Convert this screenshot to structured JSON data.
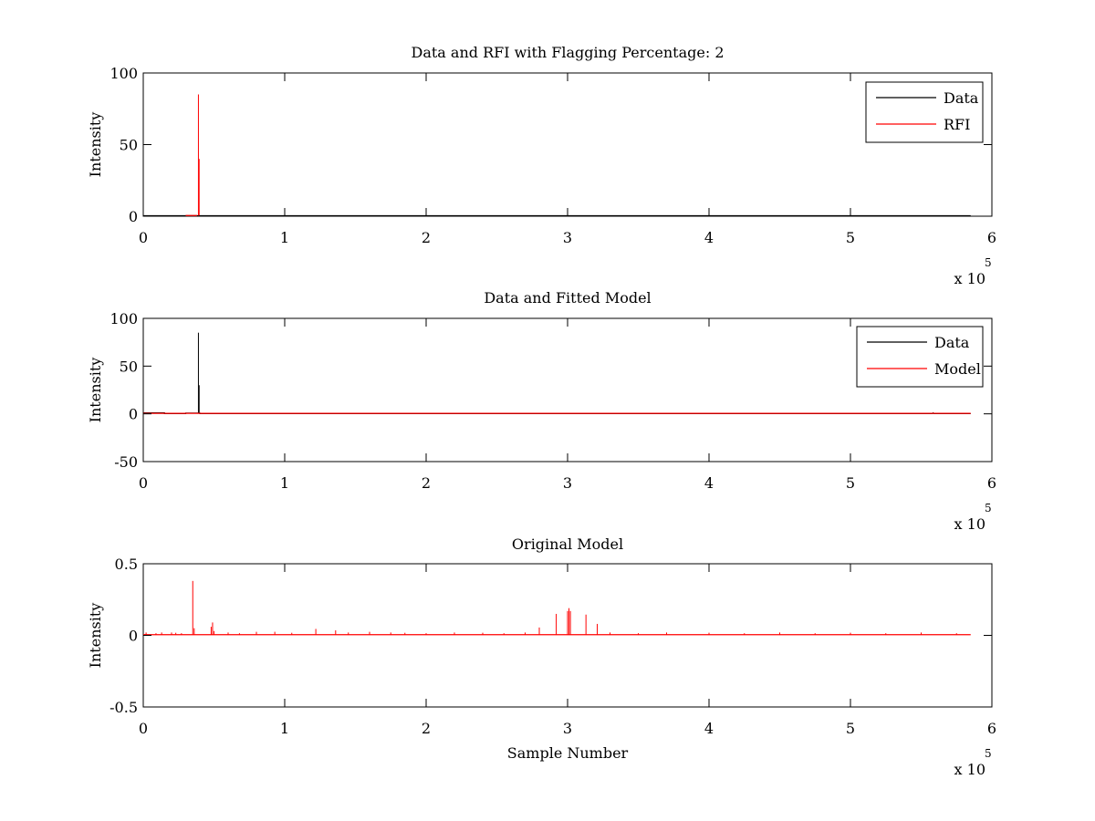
{
  "chart_data": [
    {
      "type": "line",
      "title": "Data and RFI with Flagging Percentage: 2",
      "xlabel": "",
      "ylabel": "Intensity",
      "xlim": [
        0,
        600000
      ],
      "ylim": [
        0,
        100
      ],
      "xticks": [
        0,
        1,
        2,
        3,
        4,
        5,
        6
      ],
      "yticks": [
        0,
        50,
        100
      ],
      "x_multiplier_base": "x 10",
      "x_multiplier_exp": "5",
      "grid": false,
      "legend_position": "top-right",
      "legend": [
        "Data",
        "RFI"
      ],
      "series": [
        {
          "name": "Data",
          "color": "#000000",
          "points": [
            [
              0,
              0.3
            ],
            [
              585000,
              0.3
            ]
          ],
          "spikes": []
        },
        {
          "name": "RFI",
          "color": "#ff0000",
          "points": [
            [
              30000,
              0.5
            ],
            [
              38000,
              0.5
            ]
          ],
          "spikes": [
            [
              39000,
              85
            ],
            [
              39500,
              40
            ]
          ]
        }
      ]
    },
    {
      "type": "line",
      "title": "Data and Fitted Model",
      "xlabel": "",
      "ylabel": "Intensity",
      "xlim": [
        0,
        600000
      ],
      "ylim": [
        -50,
        100
      ],
      "xticks": [
        0,
        1,
        2,
        3,
        4,
        5,
        6
      ],
      "yticks": [
        -50,
        0,
        50,
        100
      ],
      "x_multiplier_base": "x 10",
      "x_multiplier_exp": "5",
      "grid": false,
      "legend_position": "top-right",
      "legend": [
        "Data",
        "Model"
      ],
      "series": [
        {
          "name": "Data",
          "color": "#000000",
          "points": [
            [
              0,
              1
            ],
            [
              15000,
              1
            ],
            [
              15000,
              0.3
            ],
            [
              30000,
              0.3
            ],
            [
              30000,
              0.8
            ],
            [
              40000,
              0.8
            ],
            [
              40000,
              0.2
            ],
            [
              558000,
              0.2
            ],
            [
              558500,
              1
            ],
            [
              559000,
              0.2
            ],
            [
              585000,
              0.2
            ]
          ],
          "spikes": [
            [
              39000,
              85
            ],
            [
              39500,
              30
            ]
          ]
        },
        {
          "name": "Model",
          "color": "#ff0000",
          "points": [
            [
              0,
              0.5
            ],
            [
              585000,
              0.5
            ]
          ],
          "spikes": []
        }
      ]
    },
    {
      "type": "line",
      "title": "Original Model",
      "xlabel": "Sample Number",
      "ylabel": "Intensity",
      "xlim": [
        0,
        600000
      ],
      "ylim": [
        -0.5,
        0.5
      ],
      "xticks": [
        0,
        1,
        2,
        3,
        4,
        5,
        6
      ],
      "yticks": [
        -0.5,
        0,
        0.5
      ],
      "x_multiplier_base": "x 10",
      "x_multiplier_exp": "5",
      "grid": false,
      "legend_position": "none",
      "legend": [],
      "series": [
        {
          "name": "",
          "color": "#ff0000",
          "points": [
            [
              0,
              0.005
            ],
            [
              585000,
              0.005
            ]
          ],
          "spikes": [
            [
              2000,
              0.02
            ],
            [
              9000,
              0.015
            ],
            [
              13000,
              0.02
            ],
            [
              20000,
              0.02
            ],
            [
              23000,
              0.018
            ],
            [
              27000,
              0.015
            ],
            [
              35000,
              0.38
            ],
            [
              36000,
              0.05
            ],
            [
              48000,
              0.06
            ],
            [
              49000,
              0.09
            ],
            [
              50000,
              0.03
            ],
            [
              60000,
              0.02
            ],
            [
              68000,
              0.015
            ],
            [
              80000,
              0.025
            ],
            [
              93000,
              0.025
            ],
            [
              105000,
              0.018
            ],
            [
              122000,
              0.045
            ],
            [
              136000,
              0.035
            ],
            [
              145000,
              0.02
            ],
            [
              160000,
              0.025
            ],
            [
              175000,
              0.02
            ],
            [
              185000,
              0.018
            ],
            [
              200000,
              0.015
            ],
            [
              220000,
              0.02
            ],
            [
              240000,
              0.018
            ],
            [
              255000,
              0.015
            ],
            [
              270000,
              0.02
            ],
            [
              280000,
              0.055
            ],
            [
              292000,
              0.15
            ],
            [
              300000,
              0.17
            ],
            [
              301000,
              0.19
            ],
            [
              302000,
              0.17
            ],
            [
              313000,
              0.145
            ],
            [
              321000,
              0.08
            ],
            [
              330000,
              0.02
            ],
            [
              350000,
              0.015
            ],
            [
              370000,
              0.02
            ],
            [
              400000,
              0.018
            ],
            [
              425000,
              0.015
            ],
            [
              450000,
              0.02
            ],
            [
              475000,
              0.015
            ],
            [
              500000,
              0.018
            ],
            [
              525000,
              0.015
            ],
            [
              550000,
              0.02
            ],
            [
              575000,
              0.015
            ]
          ]
        }
      ]
    }
  ]
}
